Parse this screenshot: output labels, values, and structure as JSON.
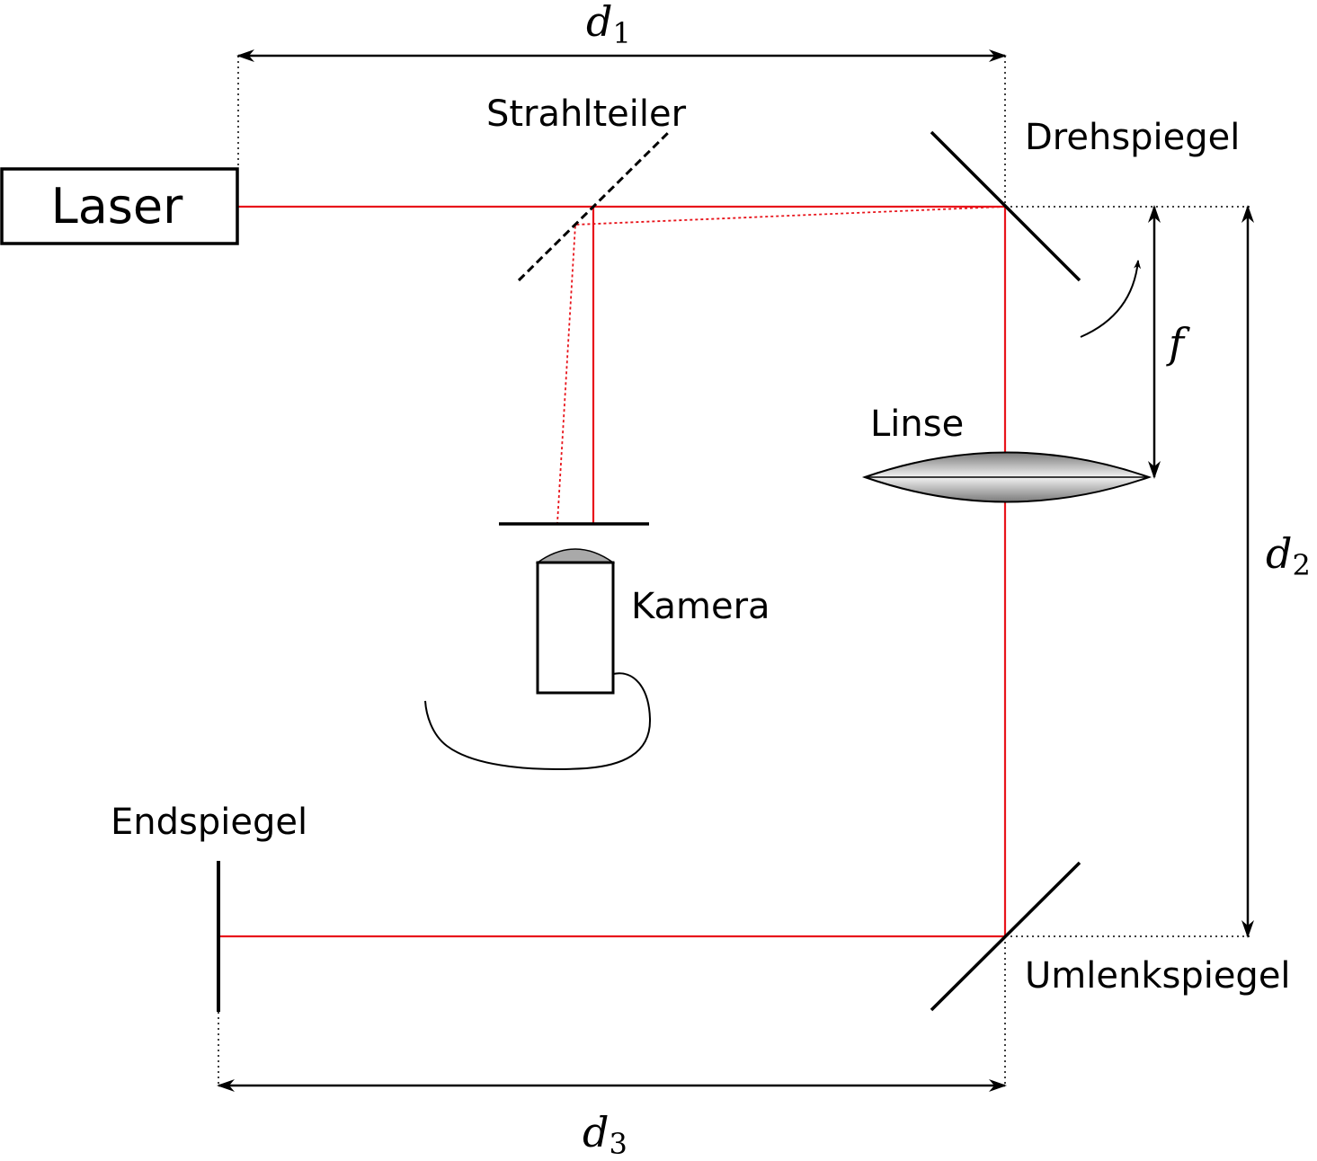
{
  "labels": {
    "laser": "Laser",
    "beam_splitter": "Strahlteiler",
    "rotating_mirror": "Drehspiegel",
    "lens": "Linse",
    "camera": "Kamera",
    "end_mirror": "Endspiegel",
    "deflection_mirror": "Umlenkspiegel"
  },
  "dimensions": {
    "d1": {
      "symbol": "d",
      "subscript": "1"
    },
    "d2": {
      "symbol": "d",
      "subscript": "2"
    },
    "d3": {
      "symbol": "d",
      "subscript": "3"
    },
    "focal": {
      "symbol": "f"
    }
  },
  "colors": {
    "beam": "#e8141b",
    "ink": "#000000",
    "lens_fill": "#9a9a9a"
  }
}
